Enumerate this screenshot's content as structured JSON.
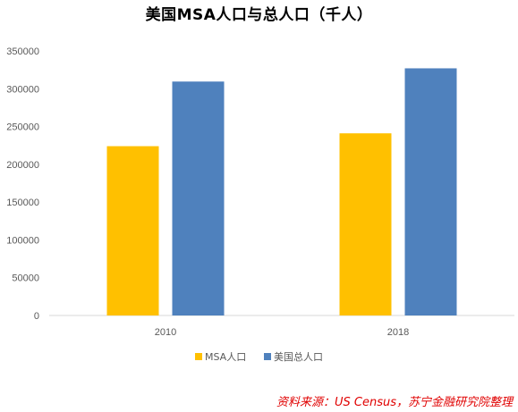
{
  "chart_data": {
    "type": "bar",
    "title": "美国MSA人口与总人口（千人）",
    "categories": [
      "2010",
      "2018"
    ],
    "series": [
      {
        "name": "MSA人口",
        "values": [
          224000,
          241000
        ],
        "color": "#FFC000"
      },
      {
        "name": "美国总人口",
        "values": [
          309500,
          327000
        ],
        "color": "#4F81BD"
      }
    ],
    "ylim": [
      0,
      350000
    ],
    "yticks": [
      0,
      50000,
      100000,
      150000,
      200000,
      250000,
      300000,
      350000
    ],
    "grid": false,
    "legend": "bottom"
  },
  "source_note": "资料来源：US Census，苏宁金融研究院整理"
}
